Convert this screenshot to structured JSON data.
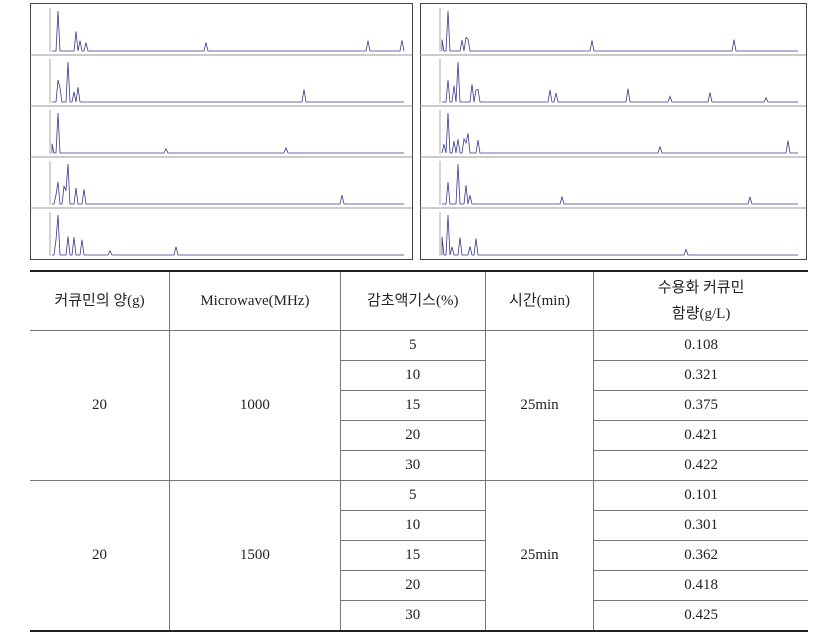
{
  "table": {
    "header": [
      "커큐민의 양(g)",
      "Microwave(MHz)",
      "감초액기스(%)",
      "시간(min)",
      [
        "수용화 커큐민",
        "함량(g/L)"
      ]
    ],
    "groups": [
      {
        "amount": "20",
        "microwave": "1000",
        "time": "25min",
        "rows": [
          [
            "5",
            "0.108"
          ],
          [
            "10",
            "0.321"
          ],
          [
            "15",
            "0.375"
          ],
          [
            "20",
            "0.421"
          ],
          [
            "30",
            "0.422"
          ]
        ]
      },
      {
        "amount": "20",
        "microwave": "1500",
        "time": "25min",
        "rows": [
          [
            "5",
            "0.101"
          ],
          [
            "10",
            "0.301"
          ],
          [
            "15",
            "0.362"
          ],
          [
            "20",
            "0.418"
          ],
          [
            "30",
            "0.425"
          ]
        ]
      }
    ]
  }
}
